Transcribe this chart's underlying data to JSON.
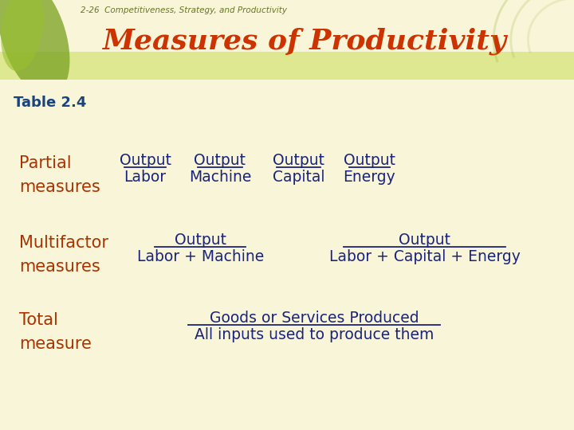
{
  "slide_subtitle": "2-26  Competitiveness, Strategy, and Productivity",
  "slide_title": "Measures of Productivity",
  "table_label": "Table 2.4",
  "bg_color": "#f8f5d8",
  "header_bg": "#ccd870",
  "header_bg_light": "#dde890",
  "title_color": "#cc3300",
  "subtitle_color": "#667722",
  "table_label_color": "#1a4480",
  "label_color": "#aa3300",
  "content_color": "#1a237e",
  "line_color": "#1a237e",
  "left_bar_color": "#aabb44",
  "row1_label_line1": "Partial",
  "row1_label_line2": "measures",
  "row1_items": [
    {
      "numerator": "Output",
      "denominator": "Labor"
    },
    {
      "numerator": "Output",
      "denominator": "Machine"
    },
    {
      "numerator": "Output",
      "denominator": "Capital"
    },
    {
      "numerator": "Output",
      "denominator": "Energy"
    }
  ],
  "row2_label_line1": "Multifactor",
  "row2_label_line2": "measures",
  "row2_items": [
    {
      "numerator": "Output",
      "denominator": "Labor + Machine"
    },
    {
      "numerator": "Output",
      "denominator": "Labor + Capital + Energy"
    }
  ],
  "row3_label_line1": "Total",
  "row3_label_line2": "measure",
  "row3_numerator": "Goods or Services Produced",
  "row3_denominator": "All inputs used to produce them"
}
